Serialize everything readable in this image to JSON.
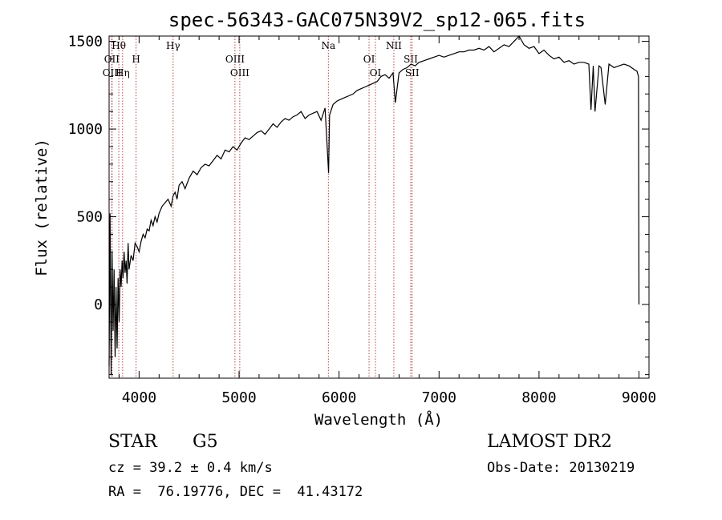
{
  "chart_data": {
    "type": "line",
    "title": "spec-56343-GAC075N39V2_sp12-065.fits",
    "xlabel": "Wavelength (Å)",
    "ylabel": "Flux (relative)",
    "xlim": [
      3700,
      9100
    ],
    "ylim": [
      -420,
      1530
    ],
    "xticks": [
      "4000",
      "5000",
      "6000",
      "7000",
      "8000",
      "9000"
    ],
    "yticks": [
      "0",
      "500",
      "1000",
      "1500"
    ],
    "series": [
      {
        "x": [
          3700,
          3710,
          3720,
          3730,
          3740,
          3750,
          3760,
          3770,
          3780,
          3790,
          3800,
          3810,
          3820,
          3830,
          3840,
          3850,
          3860,
          3870,
          3880,
          3890,
          3900,
          3920,
          3940,
          3960,
          3980,
          4000,
          4020,
          4040,
          4060,
          4080,
          4100,
          4120,
          4140,
          4160,
          4180,
          4200,
          4230,
          4260,
          4290,
          4320,
          4340,
          4360,
          4380,
          4400,
          4430,
          4460,
          4500,
          4540,
          4580,
          4620,
          4660,
          4700,
          4740,
          4780,
          4820,
          4860,
          4900,
          4940,
          4980,
          5020,
          5060,
          5100,
          5140,
          5180,
          5220,
          5260,
          5300,
          5340,
          5380,
          5420,
          5460,
          5500,
          5540,
          5580,
          5620,
          5660,
          5700,
          5740,
          5780,
          5820,
          5860,
          5895,
          5905,
          5940,
          5980,
          6020,
          6060,
          6100,
          6140,
          6180,
          6220,
          6260,
          6300,
          6340,
          6380,
          6420,
          6460,
          6500,
          6540,
          6563,
          6600,
          6640,
          6680,
          6720,
          6760,
          6800,
          6850,
          6900,
          6950,
          7000,
          7050,
          7100,
          7150,
          7200,
          7250,
          7300,
          7350,
          7400,
          7450,
          7500,
          7550,
          7600,
          7650,
          7700,
          7750,
          7800,
          7850,
          7900,
          7950,
          8000,
          8050,
          8100,
          8150,
          8200,
          8250,
          8300,
          8350,
          8400,
          8450,
          8498,
          8520,
          8542,
          8560,
          8600,
          8620,
          8662,
          8700,
          8750,
          8800,
          8850,
          8900,
          8950,
          8980,
          8995,
          9000
        ],
        "values": [
          -350,
          520,
          -400,
          300,
          -150,
          200,
          -300,
          100,
          -250,
          150,
          -100,
          200,
          100,
          250,
          150,
          300,
          180,
          250,
          120,
          350,
          200,
          280,
          250,
          350,
          330,
          300,
          360,
          400,
          380,
          430,
          420,
          480,
          450,
          500,
          470,
          520,
          560,
          580,
          600,
          560,
          620,
          640,
          600,
          680,
          700,
          660,
          720,
          760,
          740,
          780,
          800,
          790,
          820,
          850,
          830,
          880,
          870,
          900,
          880,
          920,
          950,
          940,
          960,
          980,
          990,
          970,
          1000,
          1030,
          1010,
          1040,
          1060,
          1050,
          1070,
          1080,
          1100,
          1060,
          1080,
          1090,
          1100,
          1050,
          1120,
          750,
          1080,
          1140,
          1160,
          1170,
          1180,
          1190,
          1200,
          1220,
          1230,
          1240,
          1250,
          1260,
          1270,
          1300,
          1310,
          1290,
          1320,
          1150,
          1320,
          1340,
          1350,
          1370,
          1360,
          1380,
          1390,
          1400,
          1410,
          1420,
          1410,
          1420,
          1430,
          1440,
          1440,
          1450,
          1450,
          1460,
          1450,
          1470,
          1440,
          1460,
          1480,
          1470,
          1500,
          1530,
          1480,
          1460,
          1470,
          1430,
          1450,
          1420,
          1400,
          1410,
          1380,
          1390,
          1370,
          1380,
          1380,
          1370,
          1110,
          1360,
          1100,
          1360,
          1350,
          1140,
          1370,
          1350,
          1360,
          1370,
          1360,
          1340,
          1330,
          1300,
          0
        ]
      }
    ],
    "lines": [
      {
        "x": 3797,
        "label": "Hθ",
        "row": 1
      },
      {
        "x": 3727,
        "label": "OII",
        "row": 2
      },
      {
        "x": 3730,
        "label": "OIII",
        "row": 3
      },
      {
        "x": 3835,
        "label": "Hη",
        "row": 3
      },
      {
        "x": 3970,
        "label": "H",
        "row": 2
      },
      {
        "x": 4340,
        "label": "Hγ",
        "row": 1
      },
      {
        "x": 4959,
        "label": "OIII",
        "row": 2
      },
      {
        "x": 5007,
        "label": "OIII",
        "row": 3
      },
      {
        "x": 5893,
        "label": "Na",
        "row": 1
      },
      {
        "x": 6300,
        "label": "OI",
        "row": 2
      },
      {
        "x": 6364,
        "label": "OI",
        "row": 3
      },
      {
        "x": 6548,
        "label": "NII",
        "row": 1
      },
      {
        "x": 6717,
        "label": "SII",
        "row": 2
      },
      {
        "x": 6731,
        "label": "SII",
        "row": 3
      }
    ]
  },
  "info": {
    "object_class": "STAR",
    "subclass": "G5",
    "survey": "LAMOST DR2",
    "cz": "cz = 39.2 ± 0.4 km/s",
    "obs_date": "Obs-Date: 20130219",
    "coords": "RA =  76.19776, DEC =  41.43172"
  }
}
